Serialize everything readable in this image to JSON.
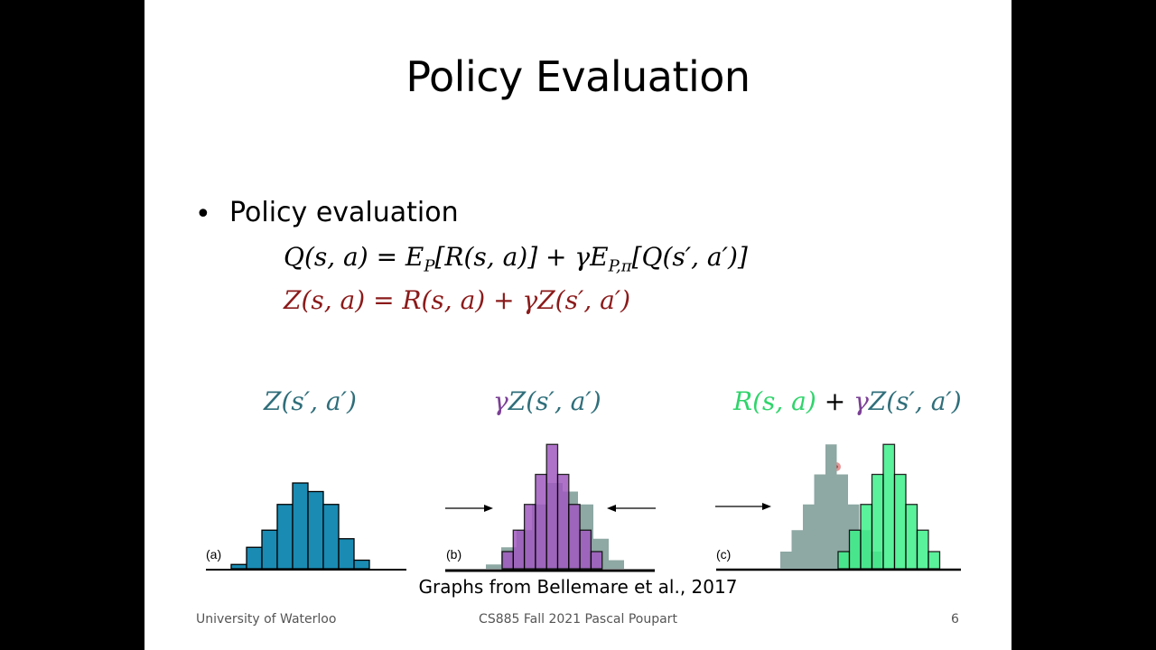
{
  "slide": {
    "title": "Policy Evaluation",
    "bullet": "Policy evaluation",
    "equation_q": "Q(s, a) = E_P[R(s, a)] + γE_{P,π}[Q(s′, a′)]",
    "equation_z": "Z(s, a) = R(s, a) + γZ(s′, a′)",
    "equation_q_parts": {
      "lhs": "Q(s, a) = E",
      "sub1": "P",
      "mid": "[R(s, a)] + γE",
      "sub2": "P,π",
      "rhs": "[Q(s′, a′)]"
    },
    "equation_z_text": "Z(s, a) = R(s, a) + γZ(s′, a′)"
  },
  "figures": {
    "label_a": "Z(s′, a′)",
    "label_b_gamma": "γ",
    "label_b_rest": "Z(s′, a′)",
    "label_c_r": "R(s, a)",
    "label_c_plus": " + ",
    "label_c_gamma": "γ",
    "label_c_z": "Z(s′, a′)",
    "panel_a": "(a)",
    "panel_b": "(b)",
    "panel_c": "(c)",
    "caption": "Graphs from Bellemare et al., 2017"
  },
  "chart_data": [
    {
      "type": "bar",
      "name": "a",
      "values": [
        0.5,
        2.5,
        4.5,
        7.5,
        10,
        9,
        7.5,
        3.5,
        1
      ]
    },
    {
      "type": "bar",
      "name": "b",
      "background": [
        0.5,
        2.5,
        4.5,
        7.5,
        10,
        9,
        7.5,
        3.5,
        1
      ],
      "values": [
        2,
        4.5,
        7.5,
        11,
        14.5,
        11,
        7.5,
        4.5,
        2
      ]
    },
    {
      "type": "bar",
      "name": "c",
      "background": [
        2,
        4.5,
        7.5,
        11,
        14.5,
        11,
        7.5,
        4.5,
        2
      ],
      "values": [
        2,
        4.5,
        7.5,
        11,
        14.5,
        11,
        7.5,
        4.5,
        2
      ]
    }
  ],
  "colors": {
    "teal": "#1a8bb3",
    "purple": "#a05ac0",
    "gray": "#8ea8a3",
    "green": "#3ef08a",
    "eq_red": "#8b1a1a"
  },
  "footer": {
    "left": "University of Waterloo",
    "center": "CS885 Fall 2021 Pascal Poupart",
    "page": "6"
  }
}
